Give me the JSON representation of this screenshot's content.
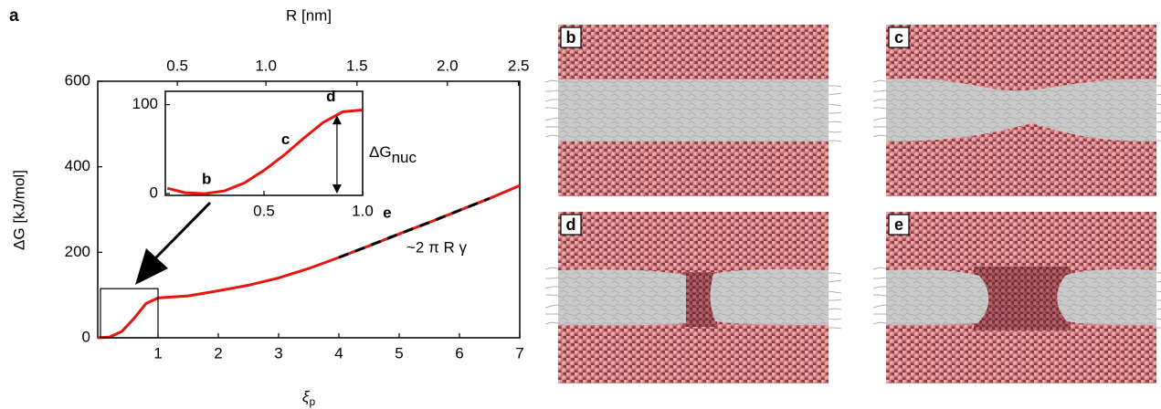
{
  "panel_label": "a",
  "chart_data": [
    {
      "type": "line",
      "xlabel": "ξ",
      "xlabel_sub": "p",
      "ylabel": "ΔG [kJ/mol]",
      "x2label": "R [nm]",
      "x": [
        0,
        0.2,
        0.4,
        0.6,
        0.8,
        1,
        1.5,
        2,
        2.5,
        3,
        3.5,
        4,
        4.5,
        5,
        5.5,
        6,
        6.5,
        7
      ],
      "series": [
        {
          "color": "#e8150f",
          "values": [
            0,
            2,
            15,
            45,
            80,
            93,
            98,
            110,
            123,
            140,
            162,
            188,
            215,
            243,
            270,
            298,
            326,
            356
          ]
        },
        {
          "color": "#000000",
          "dashed": true,
          "values": [
            null,
            null,
            null,
            null,
            null,
            null,
            null,
            null,
            null,
            null,
            null,
            188,
            215,
            243,
            270,
            298,
            326,
            null
          ]
        }
      ],
      "xlim": [
        0,
        7
      ],
      "xticks": [
        1,
        2,
        3,
        4,
        5,
        6,
        7
      ],
      "ylim": [
        0,
        600
      ],
      "yticks": [
        0,
        200,
        400,
        600
      ],
      "x2ticks": [
        {
          "value": 1.32,
          "label": "0.5"
        },
        {
          "value": 2.79,
          "label": "1.0"
        },
        {
          "value": 4.3,
          "label": "1.5"
        },
        {
          "value": 5.8,
          "label": "2.0"
        },
        {
          "value": 6.98,
          "label": "2.5"
        }
      ],
      "annotations": [
        "e",
        "~2 π R γ"
      ]
    },
    {
      "type": "line",
      "x": [
        0.01,
        0.1,
        0.2,
        0.3,
        0.4,
        0.5,
        0.6,
        0.7,
        0.8,
        0.9,
        1.0
      ],
      "series": [
        {
          "color": "#e8150f",
          "values": [
            6,
            1,
            0,
            3,
            12,
            26,
            43,
            62,
            80,
            92,
            94
          ]
        }
      ],
      "xlim": [
        0,
        1
      ],
      "xticks": [
        0.5,
        {
          "value": 1,
          "label": "1.0"
        }
      ],
      "ylim": [
        -2,
        115
      ],
      "yticks": [
        0,
        100
      ],
      "annotations": [
        "b",
        "c",
        "d"
      ],
      "delta_label": "ΔG",
      "delta_label_sub": "nuc"
    }
  ],
  "snapshots": [
    {
      "label": "b"
    },
    {
      "label": "c"
    },
    {
      "label": "d"
    },
    {
      "label": "e"
    }
  ]
}
